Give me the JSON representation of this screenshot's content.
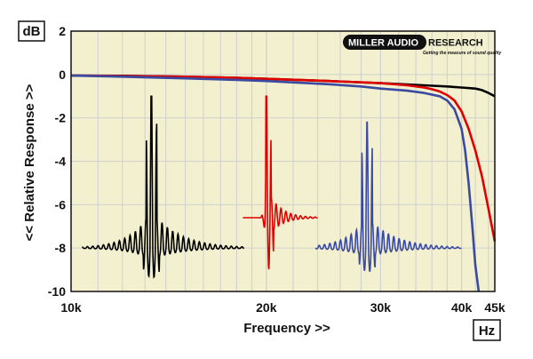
{
  "chart_data": {
    "type": "line",
    "x_scale": "log",
    "xlim": [
      10000,
      45000
    ],
    "ylim": [
      -10,
      2
    ],
    "x_ticks": [
      {
        "value": 10000,
        "label": "10k"
      },
      {
        "value": 20000,
        "label": "20k"
      },
      {
        "value": 30000,
        "label": "30k"
      },
      {
        "value": 40000,
        "label": "40k"
      },
      {
        "value": 45000,
        "label": "45k"
      }
    ],
    "y_ticks": [
      {
        "value": 2,
        "label": "2"
      },
      {
        "value": 0,
        "label": "0"
      },
      {
        "value": -2,
        "label": "-2"
      },
      {
        "value": -4,
        "label": "-4"
      },
      {
        "value": -6,
        "label": "-6"
      },
      {
        "value": -8,
        "label": "-8"
      },
      {
        "value": -10,
        "label": "-10"
      }
    ],
    "xlabel": "Frequency >>",
    "ylabel": "<< Relative Response >>",
    "y_unit": "dB",
    "x_unit": "Hz",
    "grid": true,
    "colors": {
      "background": "#f3f0cf",
      "grid": "#cfcfcf",
      "black": "#000000",
      "red": "#e00000",
      "blue": "#3a4aa0"
    },
    "series": [
      {
        "color": "#000000",
        "x": [
          10000,
          12000,
          15000,
          18000,
          20000,
          25000,
          30000,
          35000,
          38000,
          40000,
          42000,
          43000,
          44000,
          45000
        ],
        "y": [
          -0.05,
          -0.06,
          -0.1,
          -0.15,
          -0.2,
          -0.3,
          -0.4,
          -0.5,
          -0.55,
          -0.6,
          -0.65,
          -0.72,
          -0.85,
          -1.0
        ]
      },
      {
        "color": "#e00000",
        "x": [
          10000,
          12000,
          15000,
          18000,
          20000,
          25000,
          30000,
          33000,
          35000,
          36000,
          37000,
          38000,
          39000,
          40000,
          41000,
          42000,
          43000,
          44000,
          45000
        ],
        "y": [
          -0.05,
          -0.07,
          -0.1,
          -0.15,
          -0.2,
          -0.3,
          -0.4,
          -0.5,
          -0.6,
          -0.68,
          -0.78,
          -0.95,
          -1.2,
          -1.7,
          -2.5,
          -3.5,
          -4.7,
          -6.2,
          -7.7
        ]
      },
      {
        "color": "#3a4aa0",
        "x": [
          10000,
          12000,
          15000,
          18000,
          20000,
          25000,
          28000,
          30000,
          33000,
          35000,
          37000,
          38000,
          39000,
          40000,
          40500,
          41000,
          41500,
          42000,
          42500
        ],
        "y": [
          -0.05,
          -0.1,
          -0.18,
          -0.25,
          -0.3,
          -0.45,
          -0.55,
          -0.65,
          -0.75,
          -0.85,
          -1.0,
          -1.2,
          -1.6,
          -2.5,
          -3.5,
          -5.0,
          -6.8,
          -8.8,
          -10.0
        ]
      }
    ],
    "impulse_insets": [
      {
        "color": "#000000",
        "x_start": 10400,
        "x_end": 18500,
        "baseline": -8.0,
        "peak_x": 13300,
        "peak_y": -1.0,
        "trough_y": -9.5
      },
      {
        "color": "#e00000",
        "x_start": 18400,
        "x_end": 24000,
        "baseline": -6.6,
        "peak_x": 20000,
        "peak_y": -1.0,
        "trough_y": -9.5
      },
      {
        "color": "#3a4aa0",
        "x_start": 23800,
        "x_end": 40000,
        "baseline": -8.0,
        "peak_x": 28600,
        "peak_y": -2.2,
        "trough_y": -9.2
      }
    ]
  },
  "logo": {
    "main_left": "MILLER AUDIO",
    "main_right": "RESEARCH",
    "tagline": "Getting the measure of sound quality"
  }
}
